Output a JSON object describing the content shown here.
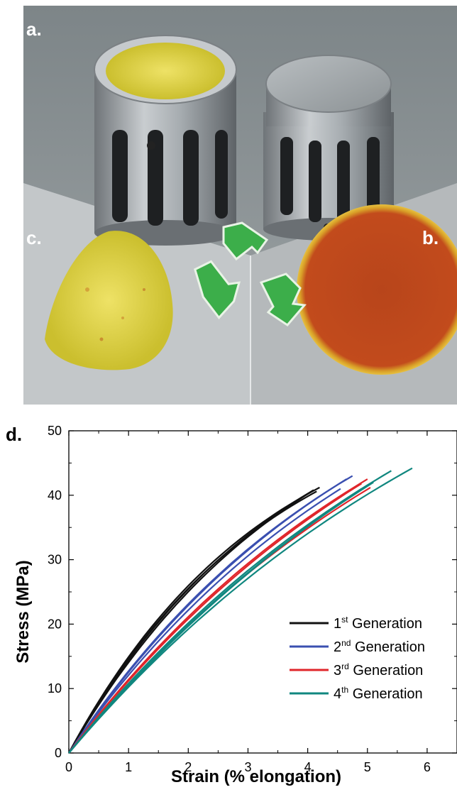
{
  "panels": {
    "a": "a.",
    "b": "b.",
    "c": "c.",
    "d": "d."
  },
  "colors": {
    "series_1": "#111111",
    "series_2": "#3a4fb0",
    "series_3": "#e0262b",
    "series_4": "#10877f",
    "recycle_symbol": "#3cae4a",
    "powder": "#e8dc4a",
    "disc": "#c0501e"
  },
  "chart_data": {
    "type": "line",
    "xlabel": "Strain (% elongation)",
    "ylabel": "Stress (MPa)",
    "xlim": [
      0,
      6.5
    ],
    "ylim": [
      0,
      50
    ],
    "x_ticks": [
      0,
      1,
      2,
      3,
      4,
      5,
      6
    ],
    "y_ticks": [
      0,
      10,
      20,
      30,
      40,
      50
    ],
    "legend_position": "bottom-right",
    "series": [
      {
        "name": "1st Generation",
        "legend_base": "1",
        "legend_sup": "st",
        "legend_rest": "Generation",
        "color": "#111111",
        "curves": [
          {
            "end_strain": 4.2,
            "end_stress": 41.2,
            "k": 0.3
          },
          {
            "end_strain": 4.1,
            "end_stress": 40.8,
            "k": 0.27
          },
          {
            "end_strain": 4.0,
            "end_stress": 40.2,
            "k": 0.25
          },
          {
            "end_strain": 4.15,
            "end_stress": 40.6,
            "k": 0.29
          }
        ]
      },
      {
        "name": "2nd Generation",
        "legend_base": "2",
        "legend_sup": "nd",
        "legend_rest": "Generation",
        "color": "#3a4fb0",
        "curves": [
          {
            "end_strain": 4.75,
            "end_stress": 43.0,
            "k": 0.2
          },
          {
            "end_strain": 4.65,
            "end_stress": 42.5,
            "k": 0.19
          },
          {
            "end_strain": 4.55,
            "end_stress": 41.0,
            "k": 0.18
          }
        ]
      },
      {
        "name": "3rd Generation",
        "legend_base": "3",
        "legend_sup": "rd",
        "legend_rest": "Generation",
        "color": "#e0262b",
        "curves": [
          {
            "end_strain": 5.05,
            "end_stress": 41.2,
            "k": 0.14
          },
          {
            "end_strain": 5.0,
            "end_stress": 42.5,
            "k": 0.16
          },
          {
            "end_strain": 4.9,
            "end_stress": 41.8,
            "k": 0.15
          }
        ]
      },
      {
        "name": "4th Generation",
        "legend_base": "4",
        "legend_sup": "th",
        "legend_rest": "Generation",
        "color": "#10877f",
        "curves": [
          {
            "end_strain": 5.75,
            "end_stress": 44.2,
            "k": 0.13
          },
          {
            "end_strain": 5.4,
            "end_stress": 43.8,
            "k": 0.14
          },
          {
            "end_strain": 5.1,
            "end_stress": 42.0,
            "k": 0.13
          },
          {
            "end_strain": 4.9,
            "end_stress": 41.0,
            "k": 0.12
          }
        ]
      }
    ]
  }
}
